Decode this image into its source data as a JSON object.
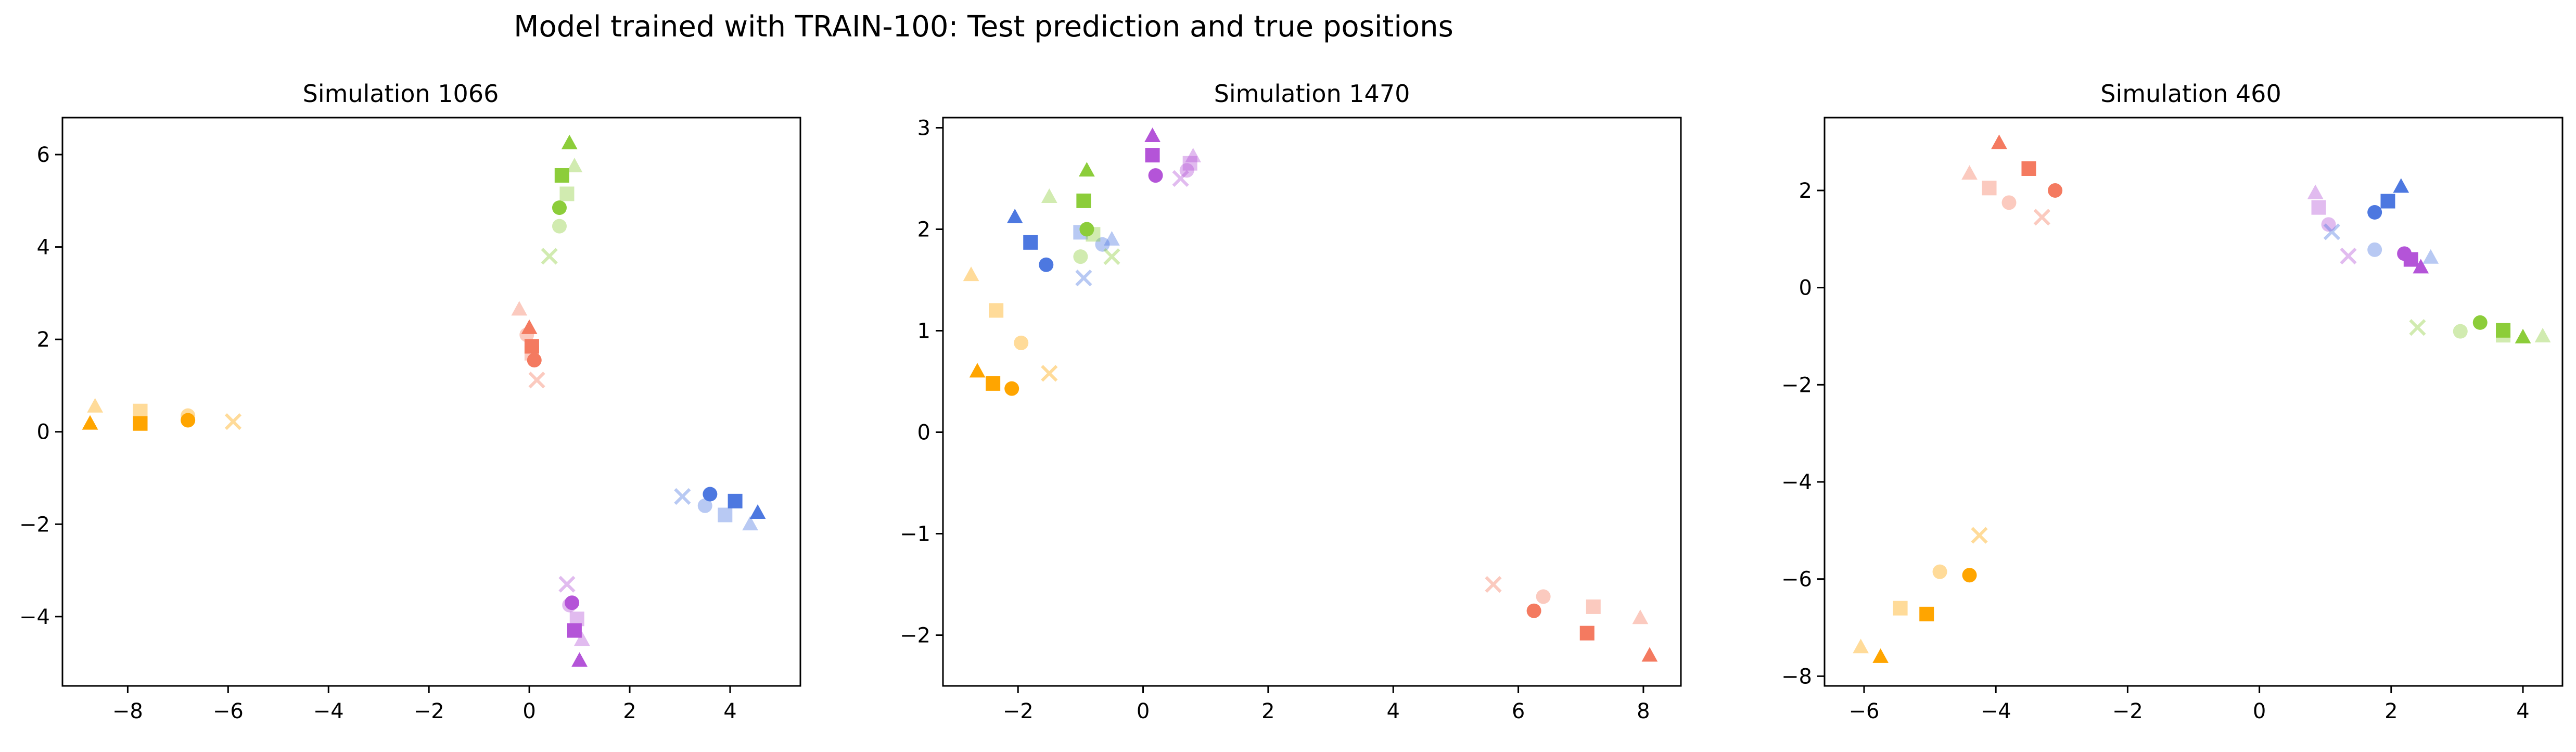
{
  "title": "Model trained with TRAIN-100: Test prediction and true positions",
  "colors": {
    "orange": "#ffa500",
    "green": "#8ccd3a",
    "salmon": "#f47a60",
    "blue": "#4d78e0",
    "purple": "#b454d8"
  },
  "chart_data": [
    {
      "type": "scatter",
      "title": "Simulation 1066",
      "xlim": [
        -9.3,
        5.4
      ],
      "ylim": [
        -5.5,
        6.8
      ],
      "xticks": [
        -8,
        -6,
        -4,
        -2,
        0,
        2,
        4
      ],
      "yticks": [
        -4,
        -2,
        0,
        2,
        4,
        6
      ],
      "points": [
        {
          "x": -8.75,
          "y": 0.18,
          "marker": "triangle",
          "color": "orange",
          "alpha": 1.0
        },
        {
          "x": -8.65,
          "y": 0.55,
          "marker": "triangle",
          "color": "orange",
          "alpha": 0.4
        },
        {
          "x": -7.75,
          "y": 0.18,
          "marker": "square",
          "color": "orange",
          "alpha": 1.0
        },
        {
          "x": -7.75,
          "y": 0.45,
          "marker": "square",
          "color": "orange",
          "alpha": 0.4
        },
        {
          "x": -6.8,
          "y": 0.25,
          "marker": "circle",
          "color": "orange",
          "alpha": 1.0
        },
        {
          "x": -6.8,
          "y": 0.35,
          "marker": "circle",
          "color": "orange",
          "alpha": 0.4
        },
        {
          "x": -5.9,
          "y": 0.22,
          "marker": "x",
          "color": "orange",
          "alpha": 0.4
        },
        {
          "x": 0.8,
          "y": 6.25,
          "marker": "triangle",
          "color": "green",
          "alpha": 1.0
        },
        {
          "x": 0.9,
          "y": 5.75,
          "marker": "triangle",
          "color": "green",
          "alpha": 0.4
        },
        {
          "x": 0.65,
          "y": 5.55,
          "marker": "square",
          "color": "green",
          "alpha": 1.0
        },
        {
          "x": 0.75,
          "y": 5.15,
          "marker": "square",
          "color": "green",
          "alpha": 0.4
        },
        {
          "x": 0.6,
          "y": 4.85,
          "marker": "circle",
          "color": "green",
          "alpha": 1.0
        },
        {
          "x": 0.6,
          "y": 4.45,
          "marker": "circle",
          "color": "green",
          "alpha": 0.4
        },
        {
          "x": 0.4,
          "y": 3.8,
          "marker": "x",
          "color": "green",
          "alpha": 0.4
        },
        {
          "x": -0.2,
          "y": 2.65,
          "marker": "triangle",
          "color": "salmon",
          "alpha": 0.4
        },
        {
          "x": 0.0,
          "y": 2.25,
          "marker": "triangle",
          "color": "salmon",
          "alpha": 1.0
        },
        {
          "x": -0.05,
          "y": 2.1,
          "marker": "circle",
          "color": "salmon",
          "alpha": 0.4
        },
        {
          "x": 0.05,
          "y": 1.85,
          "marker": "square",
          "color": "salmon",
          "alpha": 1.0
        },
        {
          "x": 0.05,
          "y": 1.7,
          "marker": "square",
          "color": "salmon",
          "alpha": 0.4
        },
        {
          "x": 0.1,
          "y": 1.55,
          "marker": "circle",
          "color": "salmon",
          "alpha": 1.0
        },
        {
          "x": 0.15,
          "y": 1.12,
          "marker": "x",
          "color": "salmon",
          "alpha": 0.4
        },
        {
          "x": 3.05,
          "y": -1.4,
          "marker": "x",
          "color": "blue",
          "alpha": 0.4
        },
        {
          "x": 3.6,
          "y": -1.35,
          "marker": "circle",
          "color": "blue",
          "alpha": 1.0
        },
        {
          "x": 3.5,
          "y": -1.6,
          "marker": "circle",
          "color": "blue",
          "alpha": 0.4
        },
        {
          "x": 4.1,
          "y": -1.5,
          "marker": "square",
          "color": "blue",
          "alpha": 1.0
        },
        {
          "x": 3.9,
          "y": -1.8,
          "marker": "square",
          "color": "blue",
          "alpha": 0.4
        },
        {
          "x": 4.55,
          "y": -1.75,
          "marker": "triangle",
          "color": "blue",
          "alpha": 1.0
        },
        {
          "x": 4.4,
          "y": -2.0,
          "marker": "triangle",
          "color": "blue",
          "alpha": 0.4
        },
        {
          "x": 0.75,
          "y": -3.3,
          "marker": "x",
          "color": "purple",
          "alpha": 0.4
        },
        {
          "x": 0.85,
          "y": -3.7,
          "marker": "circle",
          "color": "purple",
          "alpha": 1.0
        },
        {
          "x": 0.8,
          "y": -3.75,
          "marker": "circle",
          "color": "purple",
          "alpha": 0.4
        },
        {
          "x": 0.95,
          "y": -4.05,
          "marker": "square",
          "color": "purple",
          "alpha": 0.4
        },
        {
          "x": 0.9,
          "y": -4.3,
          "marker": "square",
          "color": "purple",
          "alpha": 1.0
        },
        {
          "x": 1.05,
          "y": -4.5,
          "marker": "triangle",
          "color": "purple",
          "alpha": 0.4
        },
        {
          "x": 1.0,
          "y": -4.95,
          "marker": "triangle",
          "color": "purple",
          "alpha": 1.0
        }
      ]
    },
    {
      "type": "scatter",
      "title": "Simulation 1470",
      "xlim": [
        -3.2,
        8.6
      ],
      "ylim": [
        -2.5,
        3.1
      ],
      "xticks": [
        -2,
        0,
        2,
        4,
        6,
        8
      ],
      "yticks": [
        -2,
        -1,
        0,
        1,
        2,
        3
      ],
      "points": [
        {
          "x": -2.75,
          "y": 1.55,
          "marker": "triangle",
          "color": "orange",
          "alpha": 0.4
        },
        {
          "x": -2.35,
          "y": 1.2,
          "marker": "square",
          "color": "orange",
          "alpha": 0.4
        },
        {
          "x": -1.95,
          "y": 0.88,
          "marker": "circle",
          "color": "orange",
          "alpha": 0.4
        },
        {
          "x": -1.5,
          "y": 0.58,
          "marker": "x",
          "color": "orange",
          "alpha": 0.4
        },
        {
          "x": -2.65,
          "y": 0.6,
          "marker": "triangle",
          "color": "orange",
          "alpha": 1.0
        },
        {
          "x": -2.4,
          "y": 0.48,
          "marker": "square",
          "color": "orange",
          "alpha": 1.0
        },
        {
          "x": -2.1,
          "y": 0.43,
          "marker": "circle",
          "color": "orange",
          "alpha": 1.0
        },
        {
          "x": -2.05,
          "y": 2.12,
          "marker": "triangle",
          "color": "blue",
          "alpha": 1.0
        },
        {
          "x": -1.8,
          "y": 1.87,
          "marker": "square",
          "color": "blue",
          "alpha": 1.0
        },
        {
          "x": -1.55,
          "y": 1.65,
          "marker": "circle",
          "color": "blue",
          "alpha": 1.0
        },
        {
          "x": -1.0,
          "y": 1.97,
          "marker": "square",
          "color": "blue",
          "alpha": 0.4
        },
        {
          "x": -0.65,
          "y": 1.85,
          "marker": "circle",
          "color": "blue",
          "alpha": 0.4
        },
        {
          "x": -0.5,
          "y": 1.9,
          "marker": "triangle",
          "color": "blue",
          "alpha": 0.4
        },
        {
          "x": -0.95,
          "y": 1.52,
          "marker": "x",
          "color": "blue",
          "alpha": 0.4
        },
        {
          "x": -1.5,
          "y": 2.32,
          "marker": "triangle",
          "color": "green",
          "alpha": 0.4
        },
        {
          "x": -0.9,
          "y": 2.58,
          "marker": "triangle",
          "color": "green",
          "alpha": 1.0
        },
        {
          "x": -0.95,
          "y": 2.28,
          "marker": "square",
          "color": "green",
          "alpha": 1.0
        },
        {
          "x": -0.9,
          "y": 2.0,
          "marker": "circle",
          "color": "green",
          "alpha": 1.0
        },
        {
          "x": -0.8,
          "y": 1.95,
          "marker": "square",
          "color": "green",
          "alpha": 0.4
        },
        {
          "x": -1.0,
          "y": 1.73,
          "marker": "circle",
          "color": "green",
          "alpha": 0.4
        },
        {
          "x": -0.5,
          "y": 1.73,
          "marker": "x",
          "color": "green",
          "alpha": 0.4
        },
        {
          "x": 0.15,
          "y": 2.92,
          "marker": "triangle",
          "color": "purple",
          "alpha": 1.0
        },
        {
          "x": 0.15,
          "y": 2.73,
          "marker": "square",
          "color": "purple",
          "alpha": 1.0
        },
        {
          "x": 0.2,
          "y": 2.53,
          "marker": "circle",
          "color": "purple",
          "alpha": 1.0
        },
        {
          "x": 0.8,
          "y": 2.72,
          "marker": "triangle",
          "color": "purple",
          "alpha": 0.4
        },
        {
          "x": 0.75,
          "y": 2.65,
          "marker": "square",
          "color": "purple",
          "alpha": 0.4
        },
        {
          "x": 0.7,
          "y": 2.58,
          "marker": "circle",
          "color": "purple",
          "alpha": 0.4
        },
        {
          "x": 0.6,
          "y": 2.5,
          "marker": "x",
          "color": "purple",
          "alpha": 0.4
        },
        {
          "x": 5.6,
          "y": -1.5,
          "marker": "x",
          "color": "salmon",
          "alpha": 0.4
        },
        {
          "x": 6.4,
          "y": -1.62,
          "marker": "circle",
          "color": "salmon",
          "alpha": 0.4
        },
        {
          "x": 6.25,
          "y": -1.76,
          "marker": "circle",
          "color": "salmon",
          "alpha": 1.0
        },
        {
          "x": 7.2,
          "y": -1.72,
          "marker": "square",
          "color": "salmon",
          "alpha": 0.4
        },
        {
          "x": 7.1,
          "y": -1.98,
          "marker": "square",
          "color": "salmon",
          "alpha": 1.0
        },
        {
          "x": 7.95,
          "y": -1.83,
          "marker": "triangle",
          "color": "salmon",
          "alpha": 0.4
        },
        {
          "x": 8.1,
          "y": -2.2,
          "marker": "triangle",
          "color": "salmon",
          "alpha": 1.0
        }
      ]
    },
    {
      "type": "scatter",
      "title": "Simulation 460",
      "xlim": [
        -6.6,
        4.6
      ],
      "ylim": [
        -8.2,
        3.5
      ],
      "xticks": [
        -6,
        -4,
        -2,
        0,
        2,
        4
      ],
      "yticks": [
        -8,
        -6,
        -4,
        -2,
        0,
        2
      ],
      "points": [
        {
          "x": -4.4,
          "y": 2.35,
          "marker": "triangle",
          "color": "salmon",
          "alpha": 0.4
        },
        {
          "x": -3.95,
          "y": 2.98,
          "marker": "triangle",
          "color": "salmon",
          "alpha": 1.0
        },
        {
          "x": -4.1,
          "y": 2.05,
          "marker": "square",
          "color": "salmon",
          "alpha": 0.4
        },
        {
          "x": -3.5,
          "y": 2.45,
          "marker": "square",
          "color": "salmon",
          "alpha": 1.0
        },
        {
          "x": -3.8,
          "y": 1.75,
          "marker": "circle",
          "color": "salmon",
          "alpha": 0.4
        },
        {
          "x": -3.1,
          "y": 2.0,
          "marker": "circle",
          "color": "salmon",
          "alpha": 1.0
        },
        {
          "x": -3.3,
          "y": 1.45,
          "marker": "x",
          "color": "salmon",
          "alpha": 0.4
        },
        {
          "x": 0.85,
          "y": 1.95,
          "marker": "triangle",
          "color": "purple",
          "alpha": 0.4
        },
        {
          "x": 0.9,
          "y": 1.65,
          "marker": "square",
          "color": "purple",
          "alpha": 0.4
        },
        {
          "x": 1.05,
          "y": 1.3,
          "marker": "circle",
          "color": "purple",
          "alpha": 0.4
        },
        {
          "x": 1.1,
          "y": 1.15,
          "marker": "x",
          "color": "blue",
          "alpha": 0.4
        },
        {
          "x": 1.35,
          "y": 0.65,
          "marker": "x",
          "color": "purple",
          "alpha": 0.4
        },
        {
          "x": 1.75,
          "y": 0.78,
          "marker": "circle",
          "color": "blue",
          "alpha": 0.4
        },
        {
          "x": 1.75,
          "y": 1.55,
          "marker": "circle",
          "color": "blue",
          "alpha": 1.0
        },
        {
          "x": 1.95,
          "y": 1.78,
          "marker": "square",
          "color": "blue",
          "alpha": 1.0
        },
        {
          "x": 2.15,
          "y": 2.08,
          "marker": "triangle",
          "color": "blue",
          "alpha": 1.0
        },
        {
          "x": 2.2,
          "y": 0.7,
          "marker": "circle",
          "color": "purple",
          "alpha": 1.0
        },
        {
          "x": 2.3,
          "y": 0.58,
          "marker": "square",
          "color": "purple",
          "alpha": 1.0
        },
        {
          "x": 2.45,
          "y": 0.42,
          "marker": "triangle",
          "color": "purple",
          "alpha": 1.0
        },
        {
          "x": 2.6,
          "y": 0.62,
          "marker": "triangle",
          "color": "blue",
          "alpha": 0.4
        },
        {
          "x": 2.4,
          "y": -0.82,
          "marker": "x",
          "color": "green",
          "alpha": 0.4
        },
        {
          "x": 3.05,
          "y": -0.9,
          "marker": "circle",
          "color": "green",
          "alpha": 0.4
        },
        {
          "x": 3.35,
          "y": -0.72,
          "marker": "circle",
          "color": "green",
          "alpha": 1.0
        },
        {
          "x": 3.7,
          "y": -0.88,
          "marker": "square",
          "color": "green",
          "alpha": 1.0
        },
        {
          "x": 3.7,
          "y": -0.98,
          "marker": "square",
          "color": "green",
          "alpha": 0.4
        },
        {
          "x": 4.0,
          "y": -1.02,
          "marker": "triangle",
          "color": "green",
          "alpha": 1.0
        },
        {
          "x": 4.3,
          "y": -1.0,
          "marker": "triangle",
          "color": "green",
          "alpha": 0.4
        },
        {
          "x": -4.25,
          "y": -5.1,
          "marker": "x",
          "color": "orange",
          "alpha": 0.4
        },
        {
          "x": -4.85,
          "y": -5.85,
          "marker": "circle",
          "color": "orange",
          "alpha": 0.4
        },
        {
          "x": -4.4,
          "y": -5.92,
          "marker": "circle",
          "color": "orange",
          "alpha": 1.0
        },
        {
          "x": -5.45,
          "y": -6.6,
          "marker": "square",
          "color": "orange",
          "alpha": 0.4
        },
        {
          "x": -5.05,
          "y": -6.72,
          "marker": "square",
          "color": "orange",
          "alpha": 1.0
        },
        {
          "x": -6.05,
          "y": -7.4,
          "marker": "triangle",
          "color": "orange",
          "alpha": 0.4
        },
        {
          "x": -5.75,
          "y": -7.6,
          "marker": "triangle",
          "color": "orange",
          "alpha": 1.0
        }
      ]
    }
  ]
}
